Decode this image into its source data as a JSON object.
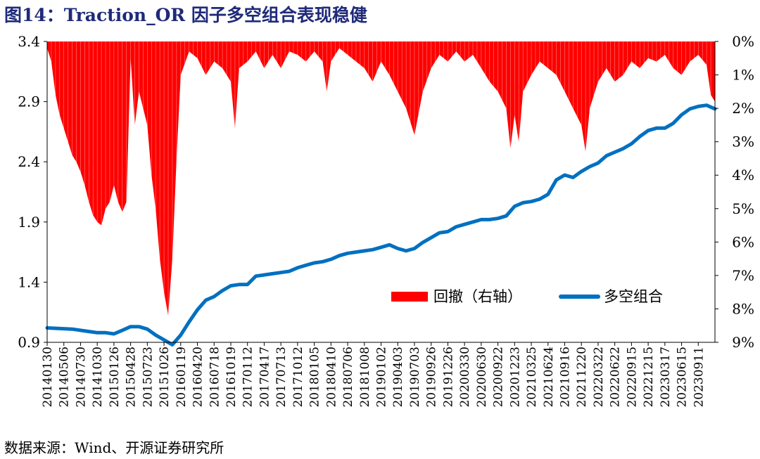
{
  "title": "图14：Traction_OR 因子多空组合表现稳健",
  "source": "数据来源：Wind、开源证券研究所",
  "chart_data": {
    "type": "line+bar",
    "left_axis": {
      "ticks": [
        0.9,
        1.4,
        1.9,
        2.4,
        2.9,
        3.4
      ],
      "tick_labels": [
        "0.9",
        "1.4",
        "1.9",
        "2.4",
        "2.9",
        "3.4"
      ],
      "ylim": [
        0.9,
        3.4
      ]
    },
    "right_axis": {
      "ticks": [
        0,
        1,
        2,
        3,
        4,
        5,
        6,
        7,
        8,
        9
      ],
      "tick_labels": [
        "0%",
        "1%",
        "2%",
        "3%",
        "4%",
        "5%",
        "6%",
        "7%",
        "8%",
        "9%"
      ],
      "ylim": [
        0,
        9
      ],
      "inverted": true
    },
    "x_tick_labels": [
      "20140130",
      "20140506",
      "20140730",
      "20141030",
      "20150126",
      "20150428",
      "20150723",
      "20151026",
      "20160119",
      "20160420",
      "20160718",
      "20161019",
      "20170112",
      "20170417",
      "20170713",
      "20171012",
      "20180105",
      "20180410",
      "20180706",
      "20181008",
      "20190102",
      "20190403",
      "20190703",
      "20190926",
      "20191226",
      "20200330",
      "20200630",
      "20200922",
      "20201223",
      "20210325",
      "20210624",
      "20210916",
      "20211220",
      "20220322",
      "20220622",
      "20220915",
      "20221215",
      "20230317",
      "20230615",
      "20230911"
    ],
    "legend": [
      {
        "label": "回撤（右轴）",
        "color": "#ff0000",
        "kind": "bar"
      },
      {
        "label": "多空组合",
        "color": "#0070c0",
        "kind": "line"
      }
    ],
    "legend_position": "bottom-right",
    "series": [
      {
        "name": "多空组合",
        "axis": "left",
        "color": "#0070c0",
        "points": [
          [
            0,
            1.02
          ],
          [
            3,
            1.01
          ],
          [
            5,
            0.99
          ],
          [
            6,
            0.98
          ],
          [
            7,
            0.98
          ],
          [
            8,
            0.97
          ],
          [
            9,
            1.0
          ],
          [
            10,
            1.03
          ],
          [
            11,
            1.03
          ],
          [
            12,
            1.01
          ],
          [
            13,
            0.96
          ],
          [
            14,
            0.92
          ],
          [
            15,
            0.88
          ],
          [
            16,
            0.96
          ],
          [
            17,
            1.07
          ],
          [
            18,
            1.17
          ],
          [
            19,
            1.25
          ],
          [
            20,
            1.28
          ],
          [
            21,
            1.33
          ],
          [
            22,
            1.37
          ],
          [
            23,
            1.38
          ],
          [
            24,
            1.38
          ],
          [
            25,
            1.45
          ],
          [
            26,
            1.46
          ],
          [
            27,
            1.47
          ],
          [
            28,
            1.48
          ],
          [
            29,
            1.49
          ],
          [
            30,
            1.52
          ],
          [
            31,
            1.54
          ],
          [
            32,
            1.56
          ],
          [
            33,
            1.57
          ],
          [
            34,
            1.59
          ],
          [
            35,
            1.62
          ],
          [
            36,
            1.64
          ],
          [
            37,
            1.65
          ],
          [
            38,
            1.66
          ],
          [
            39,
            1.67
          ],
          [
            40,
            1.69
          ],
          [
            41,
            1.71
          ],
          [
            42,
            1.68
          ],
          [
            43,
            1.66
          ],
          [
            44,
            1.68
          ],
          [
            45,
            1.73
          ],
          [
            46,
            1.77
          ],
          [
            47,
            1.81
          ],
          [
            48,
            1.82
          ],
          [
            49,
            1.86
          ],
          [
            50,
            1.88
          ],
          [
            51,
            1.9
          ],
          [
            52,
            1.92
          ],
          [
            53,
            1.92
          ],
          [
            54,
            1.93
          ],
          [
            55,
            1.95
          ],
          [
            56,
            2.03
          ],
          [
            57,
            2.06
          ],
          [
            58,
            2.07
          ],
          [
            59,
            2.09
          ],
          [
            60,
            2.13
          ],
          [
            61,
            2.25
          ],
          [
            62,
            2.29
          ],
          [
            63,
            2.27
          ],
          [
            64,
            2.32
          ],
          [
            65,
            2.36
          ],
          [
            66,
            2.39
          ],
          [
            67,
            2.45
          ],
          [
            68,
            2.48
          ],
          [
            69,
            2.51
          ],
          [
            70,
            2.55
          ],
          [
            71,
            2.61
          ],
          [
            72,
            2.66
          ],
          [
            73,
            2.68
          ],
          [
            74,
            2.68
          ],
          [
            75,
            2.72
          ],
          [
            76,
            2.79
          ],
          [
            77,
            2.84
          ],
          [
            78,
            2.86
          ],
          [
            79,
            2.87
          ],
          [
            80,
            2.84
          ]
        ]
      },
      {
        "name": "回撤（右轴）",
        "axis": "right",
        "color": "#ff0000",
        "points": [
          [
            0,
            0.2
          ],
          [
            0.5,
            0.6
          ],
          [
            1,
            1.6
          ],
          [
            1.5,
            2.2
          ],
          [
            2,
            2.6
          ],
          [
            2.5,
            3.0
          ],
          [
            3,
            3.4
          ],
          [
            3.5,
            3.6
          ],
          [
            4,
            3.9
          ],
          [
            4.5,
            4.3
          ],
          [
            5,
            4.8
          ],
          [
            5.5,
            5.2
          ],
          [
            6,
            5.4
          ],
          [
            6.5,
            5.5
          ],
          [
            7,
            5.0
          ],
          [
            7.5,
            4.8
          ],
          [
            8,
            4.3
          ],
          [
            8.5,
            4.8
          ],
          [
            9,
            5.1
          ],
          [
            9.5,
            4.8
          ],
          [
            10,
            0.5
          ],
          [
            10.5,
            2.5
          ],
          [
            11,
            1.5
          ],
          [
            11.5,
            2.0
          ],
          [
            12,
            2.5
          ],
          [
            12.5,
            4.0
          ],
          [
            13,
            5.0
          ],
          [
            13.5,
            6.5
          ],
          [
            14,
            7.5
          ],
          [
            14.5,
            8.2
          ],
          [
            15,
            6.5
          ],
          [
            15.5,
            3.5
          ],
          [
            16,
            1.0
          ],
          [
            17,
            0.3
          ],
          [
            18,
            0.5
          ],
          [
            19,
            1.0
          ],
          [
            20,
            0.6
          ],
          [
            21,
            0.8
          ],
          [
            22,
            1.2
          ],
          [
            22.5,
            2.6
          ],
          [
            23,
            0.8
          ],
          [
            24,
            0.6
          ],
          [
            25,
            0.3
          ],
          [
            26,
            0.8
          ],
          [
            27,
            0.4
          ],
          [
            28,
            0.8
          ],
          [
            29,
            0.3
          ],
          [
            30,
            0.4
          ],
          [
            31,
            0.6
          ],
          [
            32,
            0.3
          ],
          [
            33,
            0.6
          ],
          [
            33.5,
            1.5
          ],
          [
            34,
            0.6
          ],
          [
            35,
            0.2
          ],
          [
            36,
            0.4
          ],
          [
            37,
            0.6
          ],
          [
            38,
            0.8
          ],
          [
            39,
            1.2
          ],
          [
            40,
            0.6
          ],
          [
            41,
            1.0
          ],
          [
            42,
            1.5
          ],
          [
            43,
            2.0
          ],
          [
            44,
            2.8
          ],
          [
            45,
            1.5
          ],
          [
            46,
            0.8
          ],
          [
            47,
            0.4
          ],
          [
            48,
            0.6
          ],
          [
            49,
            0.3
          ],
          [
            50,
            0.6
          ],
          [
            51,
            0.4
          ],
          [
            52,
            0.8
          ],
          [
            53,
            1.2
          ],
          [
            54,
            1.5
          ],
          [
            55,
            2.0
          ],
          [
            55.5,
            3.2
          ],
          [
            56,
            2.2
          ],
          [
            56.5,
            3.0
          ],
          [
            57,
            1.5
          ],
          [
            58,
            1.0
          ],
          [
            59,
            0.6
          ],
          [
            60,
            0.8
          ],
          [
            61,
            1.0
          ],
          [
            62,
            1.5
          ],
          [
            63,
            2.0
          ],
          [
            64,
            2.5
          ],
          [
            64.5,
            3.3
          ],
          [
            65,
            2.0
          ],
          [
            66,
            1.2
          ],
          [
            67,
            0.8
          ],
          [
            68,
            1.2
          ],
          [
            69,
            1.0
          ],
          [
            70,
            0.6
          ],
          [
            71,
            0.8
          ],
          [
            72,
            0.5
          ],
          [
            73,
            0.6
          ],
          [
            74,
            0.4
          ],
          [
            75,
            0.8
          ],
          [
            76,
            1.0
          ],
          [
            77,
            0.6
          ],
          [
            78,
            0.4
          ],
          [
            79,
            0.7
          ],
          [
            79.5,
            1.6
          ],
          [
            80,
            1.8
          ]
        ]
      }
    ]
  }
}
